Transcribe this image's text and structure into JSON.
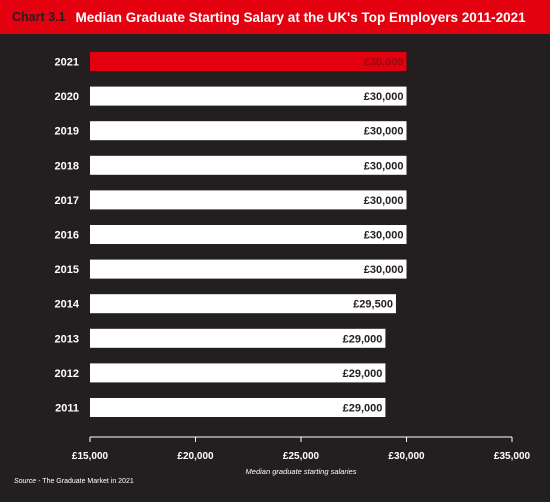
{
  "header": {
    "chart_number": "Chart 3.1",
    "title": "Median Graduate Starting Salary at the UK's Top Employers 2011-2021"
  },
  "source": {
    "label": "Source",
    "text": "- The Graduate Market in 2021"
  },
  "colors": {
    "highlight": "#e3000f",
    "bar": "#ffffff",
    "background": "#231f20",
    "highlight_text": "#9a0a12",
    "bar_text": "#231f20"
  },
  "chart_data": {
    "type": "bar",
    "orientation": "horizontal",
    "title": "Median Graduate Starting Salary at the UK's Top Employers 2011-2021",
    "xlabel": "Median graduate starting salaries",
    "ylabel": "",
    "xlim": [
      15000,
      35000
    ],
    "x_ticks": [
      15000,
      20000,
      25000,
      30000,
      35000
    ],
    "x_tick_labels": [
      "£15,000",
      "£20,000",
      "£25,000",
      "£30,000",
      "£35,000"
    ],
    "categories": [
      "2021",
      "2020",
      "2019",
      "2018",
      "2017",
      "2016",
      "2015",
      "2014",
      "2013",
      "2012",
      "2011"
    ],
    "values": [
      30000,
      30000,
      30000,
      30000,
      30000,
      30000,
      30000,
      29500,
      29000,
      29000,
      29000
    ],
    "value_labels": [
      "£30,000",
      "£30,000",
      "£30,000",
      "£30,000",
      "£30,000",
      "£30,000",
      "£30,000",
      "£29,500",
      "£29,000",
      "£29,000",
      "£29,000"
    ],
    "highlight_category": "2021",
    "grid": false,
    "legend": "none"
  }
}
